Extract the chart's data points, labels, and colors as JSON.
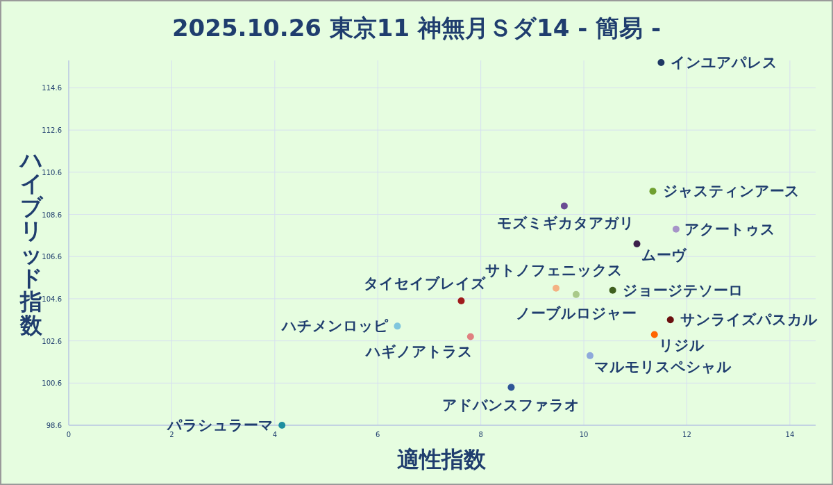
{
  "chart_data": {
    "type": "scatter",
    "title": "2025.10.26 東京11 神無月Ｓダ14  - 簡易 -",
    "xlabel": "適性指数",
    "ylabel": "ハイブリッド指数",
    "xlim": [
      0,
      14.5
    ],
    "ylim": [
      98.6,
      115.9
    ],
    "xticks": [
      0,
      2,
      4,
      6,
      8,
      10,
      12,
      14
    ],
    "yticks": [
      98.6,
      100.6,
      102.6,
      104.6,
      106.6,
      108.6,
      110.6,
      112.6,
      114.6
    ],
    "grid": true,
    "marker": "circle",
    "series": [
      {
        "name": "インユアパレス",
        "color": "#1f3864",
        "x": [
          11.5
        ],
        "values": [
          115.8
        ]
      },
      {
        "name": "ジャスティンアース",
        "color": "#70a030",
        "x": [
          11.34
        ],
        "values": [
          109.7
        ]
      },
      {
        "name": "モズミギカタアガリ",
        "color": "#6a4c93",
        "x": [
          9.62
        ],
        "values": [
          109.0
        ]
      },
      {
        "name": "アクートゥス",
        "color": "#a694c8",
        "x": [
          11.79
        ],
        "values": [
          107.9
        ]
      },
      {
        "name": "ムーヴ",
        "color": "#3b1f4a",
        "x": [
          11.03
        ],
        "values": [
          107.2
        ]
      },
      {
        "name": "サトノフェニックス",
        "color": "#f4b183",
        "x": [
          9.46
        ],
        "values": [
          105.1
        ]
      },
      {
        "name": "ノーブルロジャー",
        "color": "#a9c98a",
        "x": [
          9.85
        ],
        "values": [
          104.8
        ]
      },
      {
        "name": "ジョージテソーロ",
        "color": "#3f5f1f",
        "x": [
          10.56
        ],
        "values": [
          105.0
        ]
      },
      {
        "name": "タイセイブレイズ",
        "color": "#a01c1c",
        "x": [
          7.62
        ],
        "values": [
          104.5
        ]
      },
      {
        "name": "ハチメンロッピ",
        "color": "#7fc6dd",
        "x": [
          6.38
        ],
        "values": [
          103.3
        ]
      },
      {
        "name": "サンライズパスカル",
        "color": "#6b1010",
        "x": [
          11.68
        ],
        "values": [
          103.6
        ]
      },
      {
        "name": "リジル",
        "color": "#ff6600",
        "x": [
          11.37
        ],
        "values": [
          102.9
        ]
      },
      {
        "name": "ハギノアトラス",
        "color": "#e08080",
        "x": [
          7.8
        ],
        "values": [
          102.8
        ]
      },
      {
        "name": "マルモリスペシャル",
        "color": "#8ea9db",
        "x": [
          10.12
        ],
        "values": [
          101.9
        ]
      },
      {
        "name": "アドバンスファラオ",
        "color": "#2f5597",
        "x": [
          8.59
        ],
        "values": [
          100.4
        ]
      },
      {
        "name": "パラシュラーマ",
        "color": "#1f8fa0",
        "x": [
          4.14
        ],
        "values": [
          98.6
        ]
      }
    ]
  }
}
